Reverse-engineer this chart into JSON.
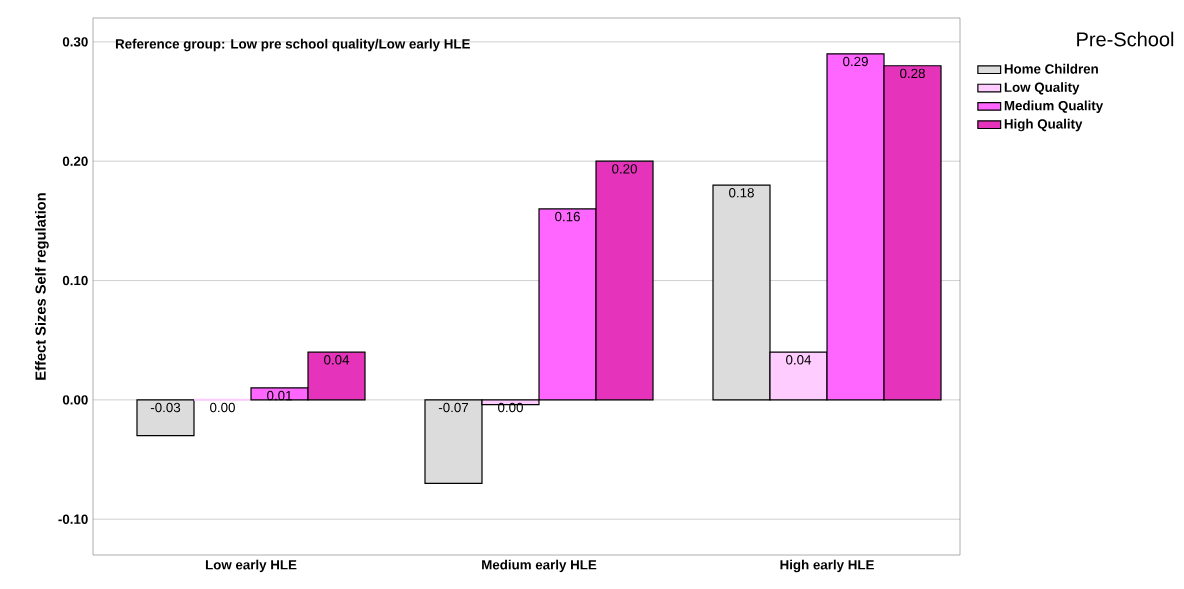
{
  "chart_data": {
    "type": "bar",
    "ylabel": "Effect Sizes Self regulation",
    "legend_title": "Pre-School",
    "annotations": [
      "Reference group: Low pre school quality/Low early HLE"
    ],
    "categories": [
      "Low early HLE",
      "Medium early HLE",
      "High early HLE"
    ],
    "series": [
      {
        "name": "Home Children",
        "color": "#dcdcdc",
        "values": [
          -0.03,
          -0.07,
          0.18
        ],
        "value_labels": [
          "-0.03",
          "-0.07",
          "0.18"
        ]
      },
      {
        "name": "Low Quality",
        "color": "#ffccff",
        "values": [
          0.0,
          -0.004,
          0.04
        ],
        "value_labels": [
          "0.00",
          "0.00",
          "0.04"
        ]
      },
      {
        "name": "Medium Quality",
        "color": "#ff66ff",
        "values": [
          0.01,
          0.16,
          0.29
        ],
        "value_labels": [
          "0.01",
          "0.16",
          "0.29"
        ]
      },
      {
        "name": "High Quality",
        "color": "#e633bb",
        "values": [
          0.04,
          0.2,
          0.28
        ],
        "value_labels": [
          "0.04",
          "0.20",
          "0.28"
        ]
      }
    ],
    "ylim": [
      -0.13,
      0.32
    ],
    "yticks": [
      {
        "value": -0.1,
        "label": "-0.10"
      },
      {
        "value": 0.0,
        "label": "0.00"
      },
      {
        "value": 0.1,
        "label": "0.10"
      },
      {
        "value": 0.2,
        "label": "0.20"
      },
      {
        "value": 0.3,
        "label": "0.30"
      }
    ],
    "grid": "y",
    "legend": "top right"
  }
}
